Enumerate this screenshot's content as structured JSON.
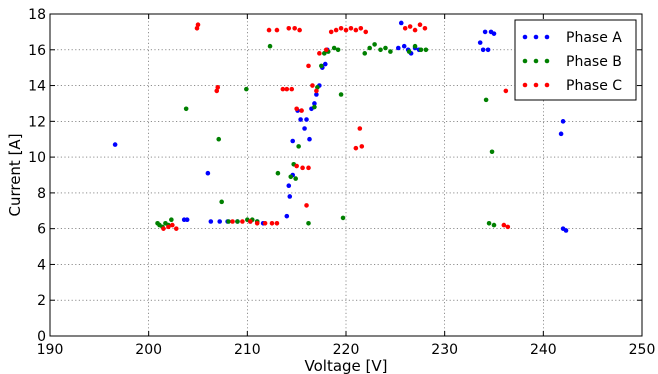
{
  "chart_data": {
    "type": "scatter",
    "title": "",
    "xlabel": "Voltage [V]",
    "ylabel": "Current [A]",
    "xlim": [
      190,
      250
    ],
    "ylim": [
      0,
      18
    ],
    "xticks": [
      "190",
      "200",
      "210",
      "220",
      "230",
      "240",
      "250"
    ],
    "yticks": [
      "0",
      "2",
      "4",
      "6",
      "8",
      "10",
      "12",
      "14",
      "16",
      "18"
    ],
    "grid": true,
    "legend_position": "top-right",
    "series": [
      {
        "name": "Phase A",
        "color": "#0000ff",
        "points": [
          [
            196.6,
            10.7
          ],
          [
            203.6,
            6.5
          ],
          [
            203.9,
            6.5
          ],
          [
            206.0,
            9.1
          ],
          [
            206.3,
            6.4
          ],
          [
            207.2,
            6.4
          ],
          [
            208.0,
            6.4
          ],
          [
            209.0,
            6.4
          ],
          [
            210.3,
            6.4
          ],
          [
            211.0,
            6.4
          ],
          [
            211.6,
            6.3
          ],
          [
            214.0,
            6.7
          ],
          [
            214.3,
            7.8
          ],
          [
            214.2,
            8.4
          ],
          [
            214.6,
            9.0
          ],
          [
            214.6,
            10.9
          ],
          [
            215.1,
            12.6
          ],
          [
            215.4,
            12.1
          ],
          [
            215.8,
            11.6
          ],
          [
            216.0,
            12.1
          ],
          [
            216.3,
            11.0
          ],
          [
            216.5,
            12.7
          ],
          [
            216.8,
            13.0
          ],
          [
            217.0,
            13.5
          ],
          [
            217.3,
            14.0
          ],
          [
            217.6,
            15.0
          ],
          [
            217.9,
            15.2
          ],
          [
            218.1,
            16.0
          ],
          [
            225.3,
            16.1
          ],
          [
            225.6,
            17.5
          ],
          [
            225.9,
            16.2
          ],
          [
            226.3,
            16.0
          ],
          [
            226.6,
            15.8
          ],
          [
            227.0,
            16.1
          ],
          [
            227.4,
            16.0
          ],
          [
            233.6,
            16.4
          ],
          [
            233.9,
            16.0
          ],
          [
            234.1,
            17.0
          ],
          [
            234.4,
            16.0
          ],
          [
            234.7,
            17.0
          ],
          [
            235.0,
            16.9
          ],
          [
            241.8,
            11.3
          ],
          [
            242.0,
            12.0
          ],
          [
            242.0,
            6.0
          ],
          [
            242.3,
            5.9
          ]
        ]
      },
      {
        "name": "Phase B",
        "color": "#008000",
        "points": [
          [
            200.9,
            6.3
          ],
          [
            201.1,
            6.2
          ],
          [
            201.4,
            6.1
          ],
          [
            201.7,
            6.3
          ],
          [
            202.0,
            6.2
          ],
          [
            202.3,
            6.5
          ],
          [
            203.8,
            12.7
          ],
          [
            207.1,
            11.0
          ],
          [
            207.4,
            7.5
          ],
          [
            208.1,
            6.4
          ],
          [
            209.0,
            6.4
          ],
          [
            209.9,
            13.8
          ],
          [
            210.0,
            6.5
          ],
          [
            210.5,
            6.5
          ],
          [
            211.0,
            6.4
          ],
          [
            212.3,
            16.2
          ],
          [
            213.1,
            9.1
          ],
          [
            214.4,
            8.9
          ],
          [
            214.7,
            9.6
          ],
          [
            214.9,
            8.8
          ],
          [
            215.2,
            10.6
          ],
          [
            216.2,
            6.3
          ],
          [
            216.8,
            12.8
          ],
          [
            217.1,
            13.9
          ],
          [
            217.5,
            15.1
          ],
          [
            217.8,
            15.8
          ],
          [
            218.2,
            15.9
          ],
          [
            218.8,
            16.1
          ],
          [
            219.2,
            16.0
          ],
          [
            219.5,
            13.5
          ],
          [
            219.7,
            6.6
          ],
          [
            221.9,
            15.8
          ],
          [
            222.4,
            16.1
          ],
          [
            222.9,
            16.3
          ],
          [
            223.5,
            16.0
          ],
          [
            224.0,
            16.1
          ],
          [
            224.5,
            15.9
          ],
          [
            226.4,
            15.9
          ],
          [
            227.0,
            16.2
          ],
          [
            227.6,
            16.0
          ],
          [
            228.1,
            16.0
          ],
          [
            234.2,
            13.2
          ],
          [
            234.5,
            6.3
          ],
          [
            234.8,
            10.3
          ],
          [
            235.0,
            6.2
          ]
        ]
      },
      {
        "name": "Phase C",
        "color": "#ff0000",
        "points": [
          [
            201.5,
            6.0
          ],
          [
            202.0,
            6.1
          ],
          [
            202.4,
            6.2
          ],
          [
            202.8,
            6.0
          ],
          [
            204.9,
            17.2
          ],
          [
            205.0,
            17.4
          ],
          [
            206.9,
            13.7
          ],
          [
            207.0,
            13.9
          ],
          [
            208.5,
            6.4
          ],
          [
            209.5,
            6.4
          ],
          [
            210.3,
            6.4
          ],
          [
            211.0,
            6.3
          ],
          [
            211.8,
            6.3
          ],
          [
            212.5,
            6.3
          ],
          [
            213.0,
            6.3
          ],
          [
            212.2,
            17.1
          ],
          [
            213.0,
            17.1
          ],
          [
            213.6,
            13.8
          ],
          [
            214.0,
            13.8
          ],
          [
            214.5,
            13.8
          ],
          [
            214.2,
            17.2
          ],
          [
            214.8,
            17.2
          ],
          [
            215.3,
            17.1
          ],
          [
            215.0,
            12.7
          ],
          [
            215.5,
            12.6
          ],
          [
            215.0,
            9.5
          ],
          [
            215.6,
            9.4
          ],
          [
            216.2,
            9.4
          ],
          [
            216.2,
            15.1
          ],
          [
            216.0,
            7.3
          ],
          [
            216.6,
            14.0
          ],
          [
            217.0,
            13.7
          ],
          [
            217.3,
            15.8
          ],
          [
            218.0,
            16.0
          ],
          [
            218.5,
            17.0
          ],
          [
            219.0,
            17.1
          ],
          [
            219.5,
            17.2
          ],
          [
            220.0,
            17.1
          ],
          [
            220.5,
            17.2
          ],
          [
            221.0,
            17.1
          ],
          [
            221.5,
            17.2
          ],
          [
            222.0,
            17.0
          ],
          [
            221.0,
            10.5
          ],
          [
            221.6,
            10.6
          ],
          [
            221.4,
            11.6
          ],
          [
            226.0,
            17.2
          ],
          [
            226.5,
            17.3
          ],
          [
            227.0,
            17.1
          ],
          [
            227.5,
            17.4
          ],
          [
            228.0,
            17.2
          ],
          [
            236.0,
            6.2
          ],
          [
            236.4,
            6.1
          ],
          [
            236.2,
            13.7
          ]
        ]
      }
    ]
  }
}
